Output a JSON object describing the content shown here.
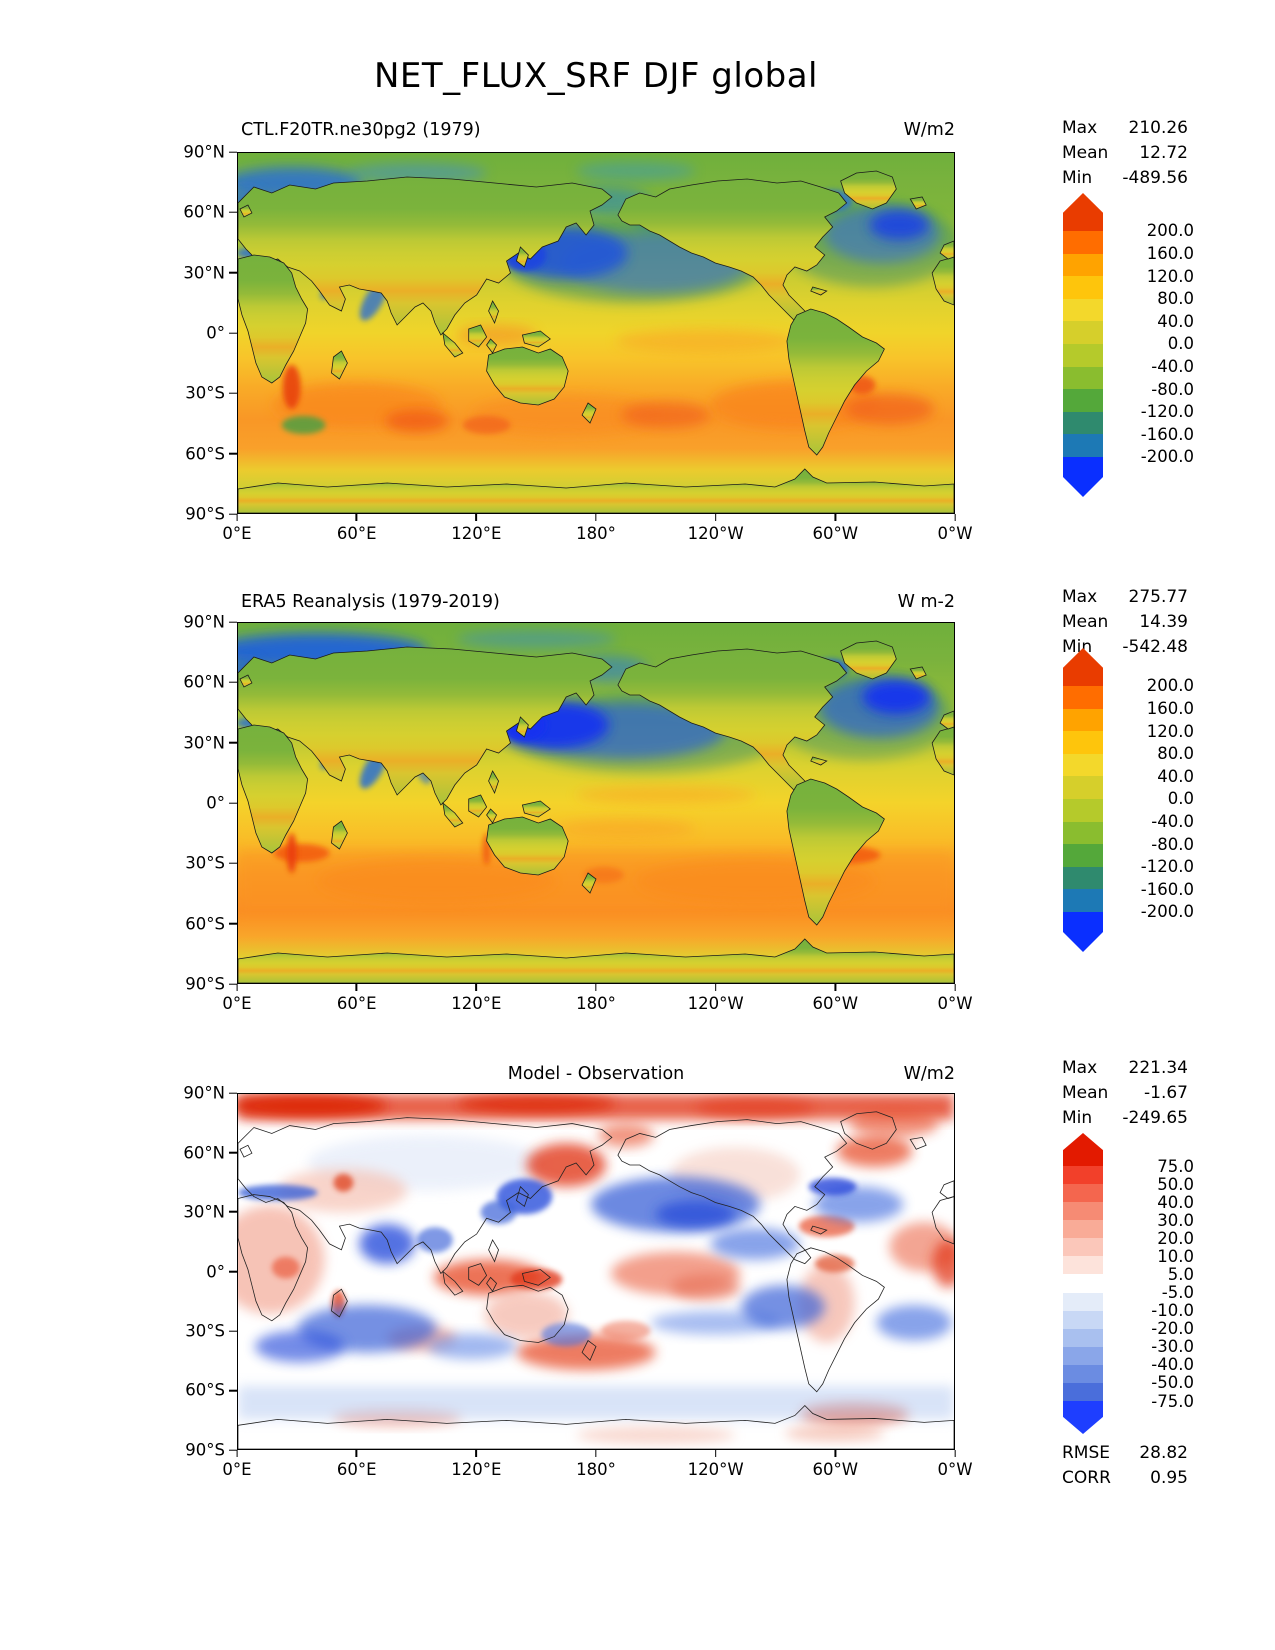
{
  "figure_title": "NET_FLUX_SRF DJF global",
  "axes": {
    "lon_ticks": [
      "0°E",
      "60°E",
      "120°E",
      "180°",
      "120°W",
      "60°W",
      "0°W"
    ],
    "lat_ticks": [
      "90°N",
      "60°N",
      "30°N",
      "0°",
      "30°S",
      "60°S",
      "90°S"
    ]
  },
  "panels": [
    {
      "title": "CTL.F20TR.ne30pg2 (1979)",
      "units": "W/m2",
      "stats": {
        "max_label": "Max",
        "max": "210.26",
        "mean_label": "Mean",
        "mean": "12.72",
        "min_label": "Min",
        "min": "-489.56"
      },
      "colorbar": {
        "tick_labels": [
          "200.0",
          "160.0",
          "120.0",
          "80.0",
          "40.0",
          "0.0",
          "-40.0",
          "-80.0",
          "-120.0",
          "-160.0",
          "-200.0"
        ],
        "colors": [
          "#e93c00",
          "#ff6d00",
          "#ffa300",
          "#fec50c",
          "#f3d82b",
          "#d6cf2b",
          "#b5ca2b",
          "#8abd2f",
          "#54a83a",
          "#2f8a6e",
          "#1d79b5",
          "#0a2fff"
        ]
      }
    },
    {
      "title": "ERA5 Reanalysis (1979-2019)",
      "units": "W m-2",
      "stats": {
        "max_label": "Max",
        "max": "275.77",
        "mean_label": "Mean",
        "mean": "14.39",
        "min_label": "Min",
        "min": "-542.48"
      },
      "colorbar": {
        "tick_labels": [
          "200.0",
          "160.0",
          "120.0",
          "80.0",
          "40.0",
          "0.0",
          "-40.0",
          "-80.0",
          "-120.0",
          "-160.0",
          "-200.0"
        ],
        "colors": [
          "#e93c00",
          "#ff6d00",
          "#ffa300",
          "#fec50c",
          "#f3d82b",
          "#d6cf2b",
          "#b5ca2b",
          "#8abd2f",
          "#54a83a",
          "#2f8a6e",
          "#1d79b5",
          "#0a2fff"
        ]
      }
    },
    {
      "title": "Model - Observation",
      "units": "W/m2",
      "stats": {
        "max_label": "Max",
        "max": "221.34",
        "mean_label": "Mean",
        "mean": "-1.67",
        "min_label": "Min",
        "min": "-249.65"
      },
      "colorbar": {
        "tick_labels": [
          "75.0",
          "50.0",
          "40.0",
          "30.0",
          "20.0",
          "10.0",
          "5.0",
          "-5.0",
          "-10.0",
          "-20.0",
          "-30.0",
          "-40.0",
          "-50.0",
          "-75.0"
        ],
        "colors": [
          "#e31a00",
          "#f2402a",
          "#f4664e",
          "#f68b74",
          "#f9ab97",
          "#fbc7ba",
          "#fde3db",
          "#ffffff",
          "#e4ecf9",
          "#c8d8f5",
          "#a9c0ef",
          "#8aa6e9",
          "#6b8ce2",
          "#4a6edb",
          "#1e3eff"
        ]
      },
      "metrics": {
        "rmse_label": "RMSE",
        "rmse": "28.82",
        "corr_label": "CORR",
        "corr": "0.95"
      }
    }
  ],
  "chart_data": [
    {
      "type": "heatmap",
      "subtype": "global_filled_contour_map",
      "title": "CTL.F20TR.ne30pg2 (1979)",
      "variable": "NET_FLUX_SRF",
      "season": "DJF",
      "region": "global",
      "units": "W/m2",
      "projection": "equirectangular, Pacific-centered (180°)",
      "x": {
        "label": "longitude",
        "ticks": [
          "0°E",
          "60°E",
          "120°E",
          "180°",
          "120°W",
          "60°W",
          "0°W"
        ],
        "range_deg": [
          0,
          360
        ]
      },
      "y": {
        "label": "latitude",
        "ticks": [
          "90°N",
          "60°N",
          "30°N",
          "0°",
          "30°S",
          "60°S",
          "90°S"
        ],
        "range_deg": [
          -90,
          90
        ]
      },
      "colorbar_levels": [
        -200,
        -160,
        -120,
        -80,
        -40,
        0,
        40,
        80,
        120,
        160,
        200
      ],
      "colorbar_extend": "both",
      "stats": {
        "max": 210.26,
        "mean": 12.72,
        "min": -489.56
      }
    },
    {
      "type": "heatmap",
      "subtype": "global_filled_contour_map",
      "title": "ERA5 Reanalysis (1979-2019)",
      "variable": "NET_FLUX_SRF",
      "season": "DJF",
      "region": "global",
      "units": "W m-2",
      "projection": "equirectangular, Pacific-centered (180°)",
      "x": {
        "label": "longitude",
        "ticks": [
          "0°E",
          "60°E",
          "120°E",
          "180°",
          "120°W",
          "60°W",
          "0°W"
        ],
        "range_deg": [
          0,
          360
        ]
      },
      "y": {
        "label": "latitude",
        "ticks": [
          "90°N",
          "60°N",
          "30°N",
          "0°",
          "30°S",
          "60°S",
          "90°S"
        ],
        "range_deg": [
          -90,
          90
        ]
      },
      "colorbar_levels": [
        -200,
        -160,
        -120,
        -80,
        -40,
        0,
        40,
        80,
        120,
        160,
        200
      ],
      "colorbar_extend": "both",
      "stats": {
        "max": 275.77,
        "mean": 14.39,
        "min": -542.48
      }
    },
    {
      "type": "heatmap",
      "subtype": "global_filled_contour_difference_map",
      "title": "Model - Observation",
      "variable": "NET_FLUX_SRF",
      "season": "DJF",
      "region": "global",
      "units": "W/m2",
      "projection": "equirectangular, Pacific-centered (180°)",
      "x": {
        "label": "longitude",
        "ticks": [
          "0°E",
          "60°E",
          "120°E",
          "180°",
          "120°W",
          "60°W",
          "0°W"
        ],
        "range_deg": [
          0,
          360
        ]
      },
      "y": {
        "label": "latitude",
        "ticks": [
          "90°N",
          "60°N",
          "30°N",
          "0°",
          "30°S",
          "60°S",
          "90°S"
        ],
        "range_deg": [
          -90,
          90
        ]
      },
      "colorbar_levels": [
        -75,
        -50,
        -40,
        -30,
        -20,
        -10,
        -5,
        5,
        10,
        20,
        30,
        40,
        50,
        75
      ],
      "colorbar_extend": "both",
      "stats": {
        "max": 221.34,
        "mean": -1.67,
        "min": -249.65
      },
      "metrics": {
        "rmse": 28.82,
        "corr": 0.95
      }
    }
  ]
}
